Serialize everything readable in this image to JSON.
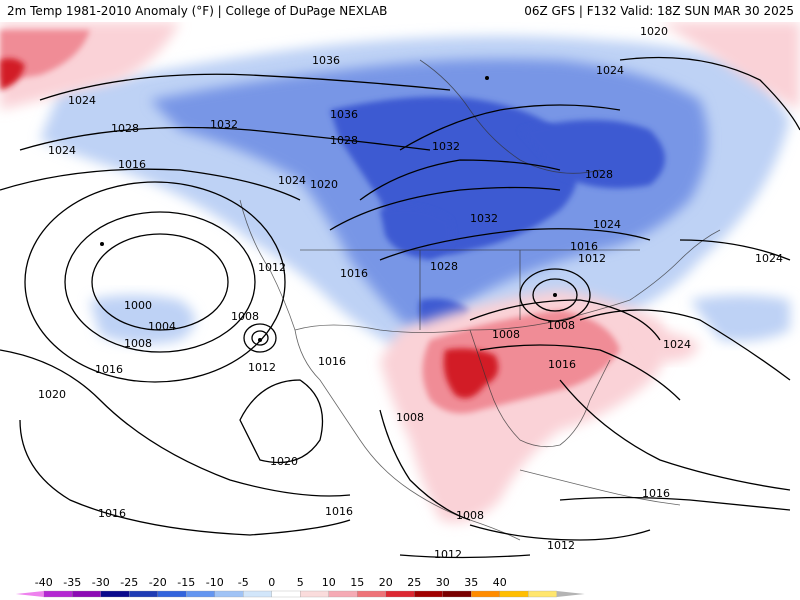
{
  "header": {
    "title_left": "2m Temp 1981-2010 Anomaly (°F) | College of DuPage NEXLAB",
    "title_right": "06Z GFS | F132 Valid: 18Z SUN MAR 30 2025"
  },
  "map": {
    "field": "2m temperature anomaly (°F)",
    "contour_field": "sea level pressure isobars (mb)",
    "isobar_labels": [
      "1036",
      "1020",
      "1024",
      "1028",
      "1032",
      "1036",
      "1028",
      "1032",
      "1024",
      "1024",
      "1016",
      "1024",
      "1020",
      "1032",
      "1028",
      "1028",
      "1024",
      "1016",
      "1012",
      "1024",
      "1012",
      "1016",
      "1000",
      "1004",
      "1008",
      "1008",
      "1012",
      "1016",
      "1016",
      "1008",
      "1008",
      "1016",
      "1008",
      "1024",
      "1020",
      "1016",
      "1016",
      "1016",
      "1008",
      "1012",
      "1012",
      "1020"
    ]
  },
  "colorbar": {
    "ticks": [
      "-40",
      "-35",
      "-30",
      "-25",
      "-20",
      "-15",
      "-10",
      "-5",
      "0",
      "5",
      "10",
      "15",
      "20",
      "25",
      "30",
      "35",
      "40"
    ],
    "colors": [
      "#ee82ee",
      "#b428d2",
      "#8c0ab4",
      "#0a0a8c",
      "#1e3cb4",
      "#3264dc",
      "#6496f0",
      "#a0c3f5",
      "#d2e6fa",
      "#ffffff",
      "#fadcdc",
      "#f5aab4",
      "#ee7378",
      "#dc2832",
      "#a00000",
      "#780000",
      "#ff8c00",
      "#ffbe00",
      "#ffe66e",
      "#b4b4b4"
    ]
  },
  "colors": {
    "cold_strong": "#3c5ad2",
    "cold_mid": "#7896e6",
    "cold_light": "#bed2f5",
    "warm_light": "#fad2d7",
    "warm_mid": "#f08c96",
    "warm_strong": "#d21e28"
  }
}
